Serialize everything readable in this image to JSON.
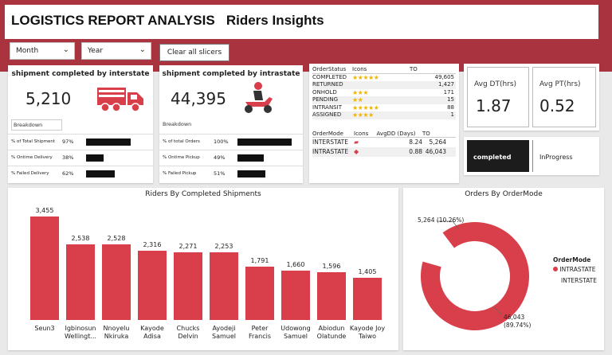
{
  "header": {
    "title": "LOGISTICS REPORT ANALYSIS   Riders Insights"
  },
  "slicers": {
    "month": "Month",
    "year": "Year",
    "clear": "Clear all slicers"
  },
  "interstate_card": {
    "title": "shipment completed by interstate",
    "value": "5,210",
    "breakdown_label": "Breakdown",
    "rows": [
      {
        "label": "% of Total Shipment",
        "pct": "97%",
        "fill": 0.97
      },
      {
        "label": "% Ontime Delivery",
        "pct": "38%",
        "fill": 0.38
      },
      {
        "label": "% Failed Delivery",
        "pct": "62%",
        "fill": 0.62
      }
    ]
  },
  "intrastate_card": {
    "title": "shipment completed by intrastate",
    "value": "44,395",
    "breakdown_label": "Breakdown",
    "rows": [
      {
        "label": "% of total Orders",
        "pct": "100%",
        "fill": 1.0
      },
      {
        "label": "% Ontime Pickup",
        "pct": "49%",
        "fill": 0.49
      },
      {
        "label": "% Failed Pickup",
        "pct": "51%",
        "fill": 0.51
      }
    ]
  },
  "status_table": {
    "headers": [
      "OrderStatus",
      "Icons",
      "TO"
    ],
    "rows": [
      {
        "status": "COMPLETED",
        "stars": 5,
        "to": "49,605"
      },
      {
        "status": "RETURNED",
        "stars": 0,
        "to": "1,427"
      },
      {
        "status": "ONHOLD",
        "stars": 3,
        "to": "171"
      },
      {
        "status": "PENDING",
        "stars": 2,
        "to": "15"
      },
      {
        "status": "INTRANSIT",
        "stars": 5,
        "to": "88"
      },
      {
        "status": "ASSIGNED",
        "stars": 4,
        "to": "1"
      }
    ]
  },
  "mode_table": {
    "headers": [
      "OrderMode",
      "Icons",
      "AvgDD (Days)",
      "TO"
    ],
    "rows": [
      {
        "mode": "INTERSTATE",
        "icon": "truck-icon",
        "avg": "8.24",
        "to": "5,264"
      },
      {
        "mode": "INTRASTATE",
        "icon": "car-icon",
        "avg": "0.88",
        "to": "46,043"
      }
    ]
  },
  "kpis": {
    "avg_dt_label": "Avg DT(hrs)",
    "avg_dt_value": "1.87",
    "avg_pt_label": "Avg PT(hrs)",
    "avg_pt_value": "0.52"
  },
  "toggle": {
    "completed": "completed",
    "inprogress": "InProgress"
  },
  "colors": {
    "brand": "#a9333f",
    "bar": "#d83f4b",
    "star": "#f0b400"
  },
  "bar_chart": {
    "title": "Riders By Completed Shipments",
    "chart_data": {
      "type": "bar",
      "categories": [
        "Seun3",
        "Igbinosun Wellingt...",
        "Nnoyelu Nkiruka",
        "Kayode Adisa",
        "Chucks Delvin",
        "Ayodeji Samuel",
        "Peter Francis",
        "Udowong Samuel",
        "Abiodun Olatunde",
        "Kayode Joy Taiwo"
      ],
      "values": [
        3455,
        2538,
        2528,
        2316,
        2271,
        2253,
        1791,
        1660,
        1596,
        1405
      ],
      "value_labels": [
        "3,455",
        "2,538",
        "2,528",
        "2,316",
        "2,271",
        "2,253",
        "1,791",
        "1,660",
        "1,596",
        "1,405"
      ]
    }
  },
  "donut": {
    "title": "Orders By OrderMode",
    "legend_title": "OrderMode",
    "chart_data": {
      "type": "pie",
      "categories": [
        "INTRASTATE",
        "INTERSTATE"
      ],
      "values": [
        46043,
        5264
      ],
      "labels_top": "5,264 (10.26%)",
      "label_bottom_1": "46,043",
      "label_bottom_2": "(89.74%)"
    },
    "legend": [
      {
        "name": "INTRASTATE",
        "color": "#d83f4b"
      },
      {
        "name": "INTERSTATE",
        "color": "#ffffff"
      }
    ]
  }
}
